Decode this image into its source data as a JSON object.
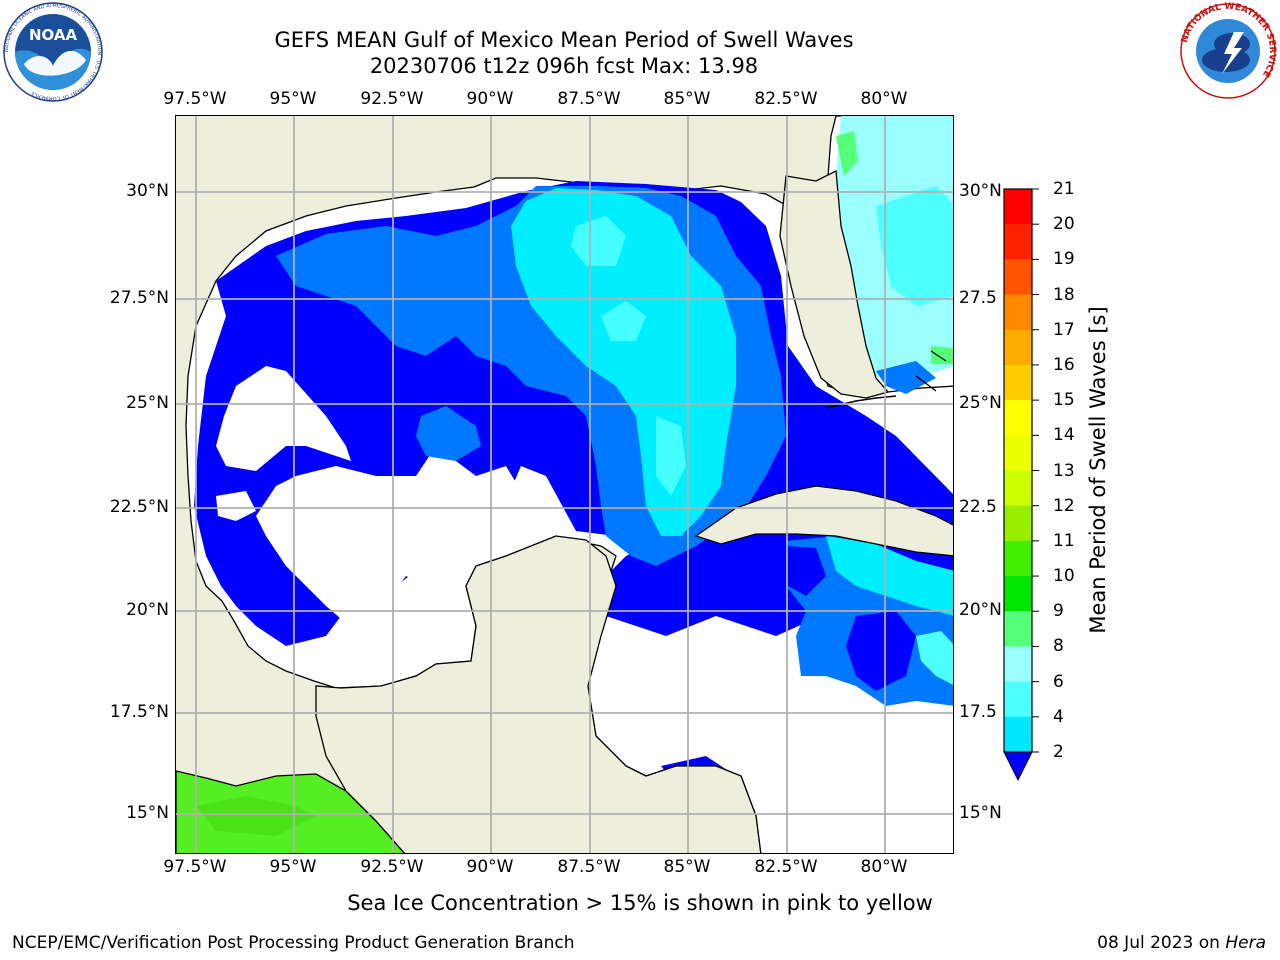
{
  "title": {
    "line1": "GEFS MEAN Gulf of Mexico Mean Period of Swell Waves",
    "line2": "20230706 t12z 096h fcst   Max: 13.98"
  },
  "map": {
    "lon_ticks": [
      "97.5°W",
      "95°W",
      "92.5°W",
      "90°W",
      "87.5°W",
      "85°W",
      "82.5°W",
      "80°W"
    ],
    "lat_ticks_left": [
      "30°N",
      "27.5°N",
      "25°N",
      "22.5°N",
      "20°N",
      "17.5°N",
      "15°N"
    ],
    "lat_ticks_right": [
      "30°N",
      "27.5",
      "25°N",
      "22.5",
      "20°N",
      "17.5",
      "15°N"
    ],
    "colors": {
      "land": "#eeeedd",
      "ocean_no_data": "#ffffff",
      "grid": "#b0b0b0",
      "coast": "#000000"
    }
  },
  "colorbar": {
    "label": "Mean Period of Swell Waves [s]",
    "ticks": [
      "2",
      "4",
      "6",
      "8",
      "9",
      "10",
      "11",
      "12",
      "13",
      "14",
      "15",
      "16",
      "17",
      "18",
      "19",
      "20",
      "21"
    ],
    "colors": [
      "#0000ff",
      "#0078ff",
      "#00e6ff",
      "#4dffff",
      "#99ffff",
      "#55ff77",
      "#00e600",
      "#44ee00",
      "#99ee00",
      "#ccff00",
      "#eeff00",
      "#ffff00",
      "#ffcc00",
      "#ffaa00",
      "#ff8800",
      "#ff5500",
      "#ff2200",
      "#ff0000"
    ],
    "extend_color": "#0000ff"
  },
  "footnote": "Sea Ice Concentration > 15% is shown in pink to yellow",
  "credits": {
    "left": "NCEP/EMC/Verification Post Processing Product Generation Branch",
    "right_prefix": "08 Jul 2023 on ",
    "right_host": "Hera"
  },
  "logos": {
    "noaa_text": "NOAA",
    "noaa_ring_text": "NATIONAL OCEANIC AND ATMOSPHERIC ADMINISTRATION · U.S. DEPARTMENT OF COMMERCE",
    "nws_ring_text": "NATIONAL WEATHER SERVICE"
  }
}
